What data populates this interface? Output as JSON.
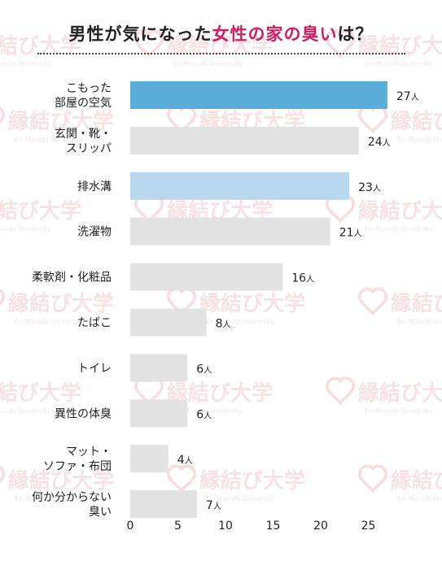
{
  "title": {
    "part1": "男性が気になった",
    "highlight": "女性の家の臭い",
    "part2": "は？"
  },
  "watermark": {
    "brand": "縁結び大学",
    "sub": "En-Musubi University"
  },
  "colors": {
    "highlight_text": "#d81b60",
    "bar_top": "#5aadd8",
    "bar_second_highlight": "#b9d8ee",
    "bar_default": "#e2e2e2"
  },
  "chart_data": {
    "type": "bar",
    "orientation": "horizontal",
    "title": "男性が気になった女性の家の臭いは？",
    "unit": "人",
    "categories": [
      [
        "こもった",
        "部屋の空気"
      ],
      [
        "玄関・靴・",
        "スリッパ"
      ],
      [
        "排水溝"
      ],
      [
        "洗濯物"
      ],
      [
        "柔軟剤・化粧品"
      ],
      [
        "たばこ"
      ],
      [
        "トイレ"
      ],
      [
        "異性の体臭"
      ],
      [
        "マット・",
        "ソファ・布団"
      ],
      [
        "何か分からない",
        "臭い"
      ]
    ],
    "values": [
      27,
      24,
      23,
      21,
      16,
      8,
      6,
      6,
      4,
      7
    ],
    "bar_color_keys": [
      "bar_top",
      "bar_default",
      "bar_second_highlight",
      "bar_default",
      "bar_default",
      "bar_default",
      "bar_default",
      "bar_default",
      "bar_default",
      "bar_default"
    ],
    "xlim": [
      0,
      27
    ],
    "xticks": [
      0,
      5,
      10,
      15,
      20,
      25
    ],
    "grid": false,
    "legend": "none"
  }
}
